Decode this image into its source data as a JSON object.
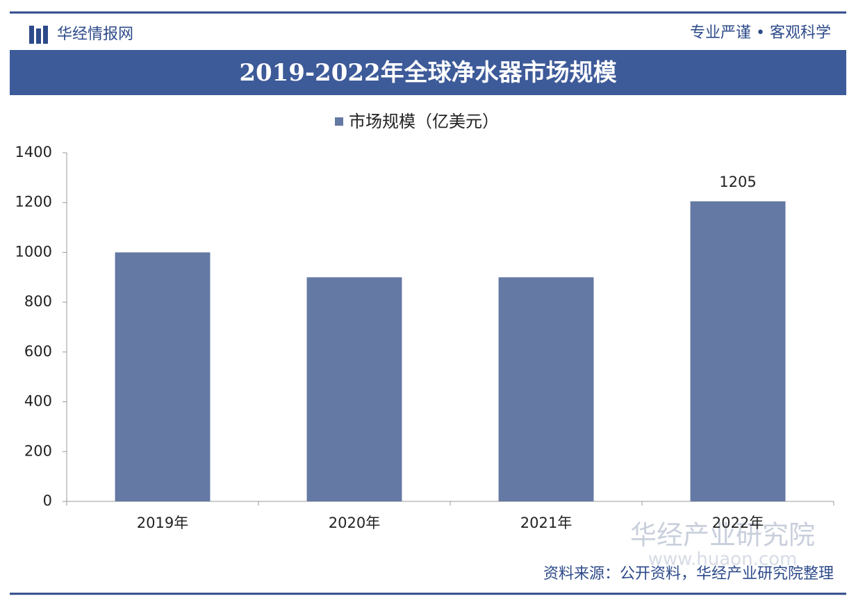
{
  "header": {
    "brand": "华经情报网",
    "tagline": "专业严谨 • 客观科学"
  },
  "chart_data": {
    "type": "bar",
    "title": "2019-2022年全球净水器市场规模",
    "categories": [
      "2019年",
      "2020年",
      "2021年",
      "2022年"
    ],
    "series": [
      {
        "name": "市场规模（亿美元）",
        "color": "#6479a3",
        "values": [
          1000,
          900,
          900,
          1205
        ],
        "value_labels": [
          null,
          null,
          null,
          "1205"
        ]
      }
    ],
    "ylim": [
      0,
      1400
    ],
    "yticks": [
      0,
      200,
      400,
      600,
      800,
      1000,
      1200,
      1400
    ],
    "grid": false,
    "legend": "top"
  },
  "footer": {
    "source": "资料来源：公开资料，华经产业研究院整理",
    "watermark": "华经产业研究院",
    "watermark_url": "www.huaon.com"
  }
}
